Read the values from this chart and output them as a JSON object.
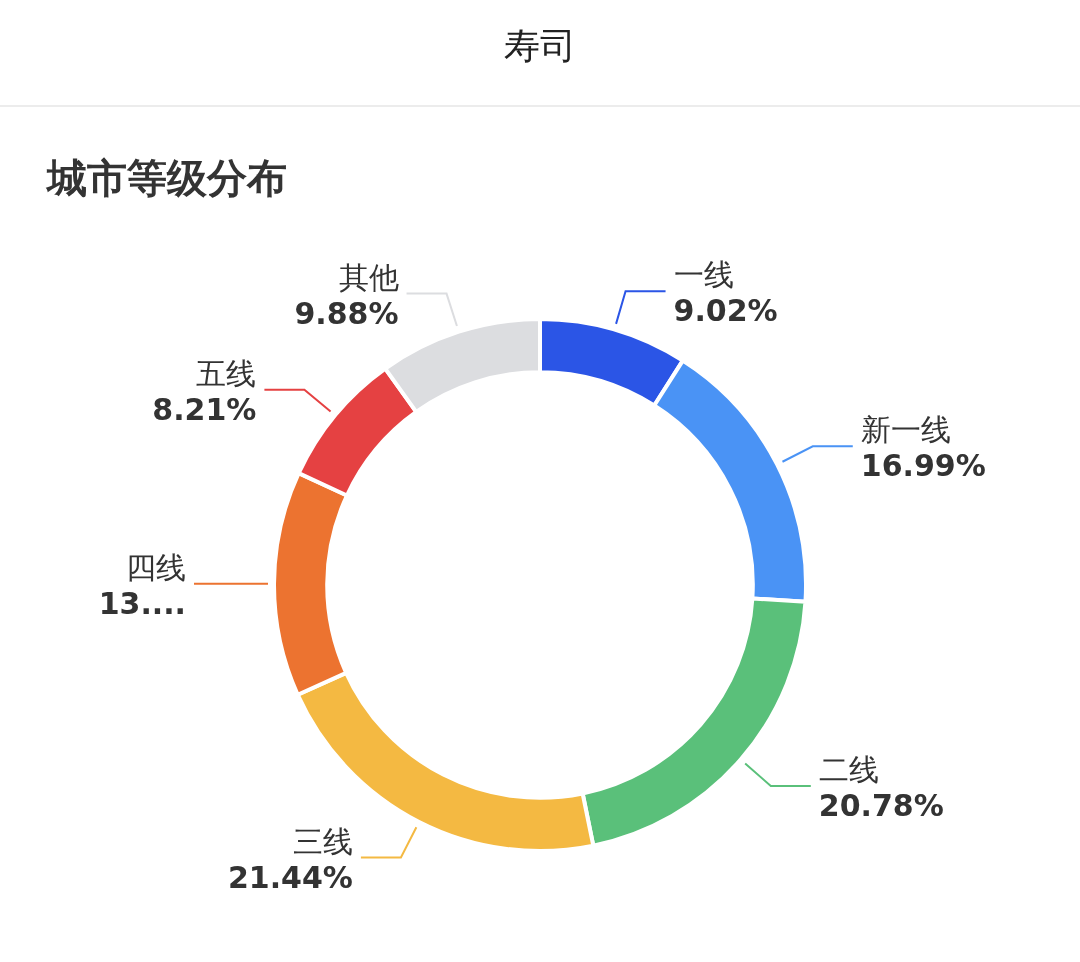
{
  "chart_data": {
    "type": "donut",
    "title": "寿司",
    "subtitle": "城市等级分布",
    "categories": [
      "一线",
      "新一线",
      "二线",
      "三线",
      "四线",
      "五线",
      "其他"
    ],
    "values": [
      9.02,
      16.99,
      20.78,
      21.44,
      13.68,
      8.21,
      9.88
    ],
    "colors": [
      "#2b55e6",
      "#4a93f5",
      "#5ac07a",
      "#f4b942",
      "#ec7330",
      "#e54142",
      "#dcdde0"
    ],
    "value_labels": [
      "9.02%",
      "16.99%",
      "20.78%",
      "21.44%",
      "13....",
      "8.21%",
      "9.88%"
    ]
  }
}
